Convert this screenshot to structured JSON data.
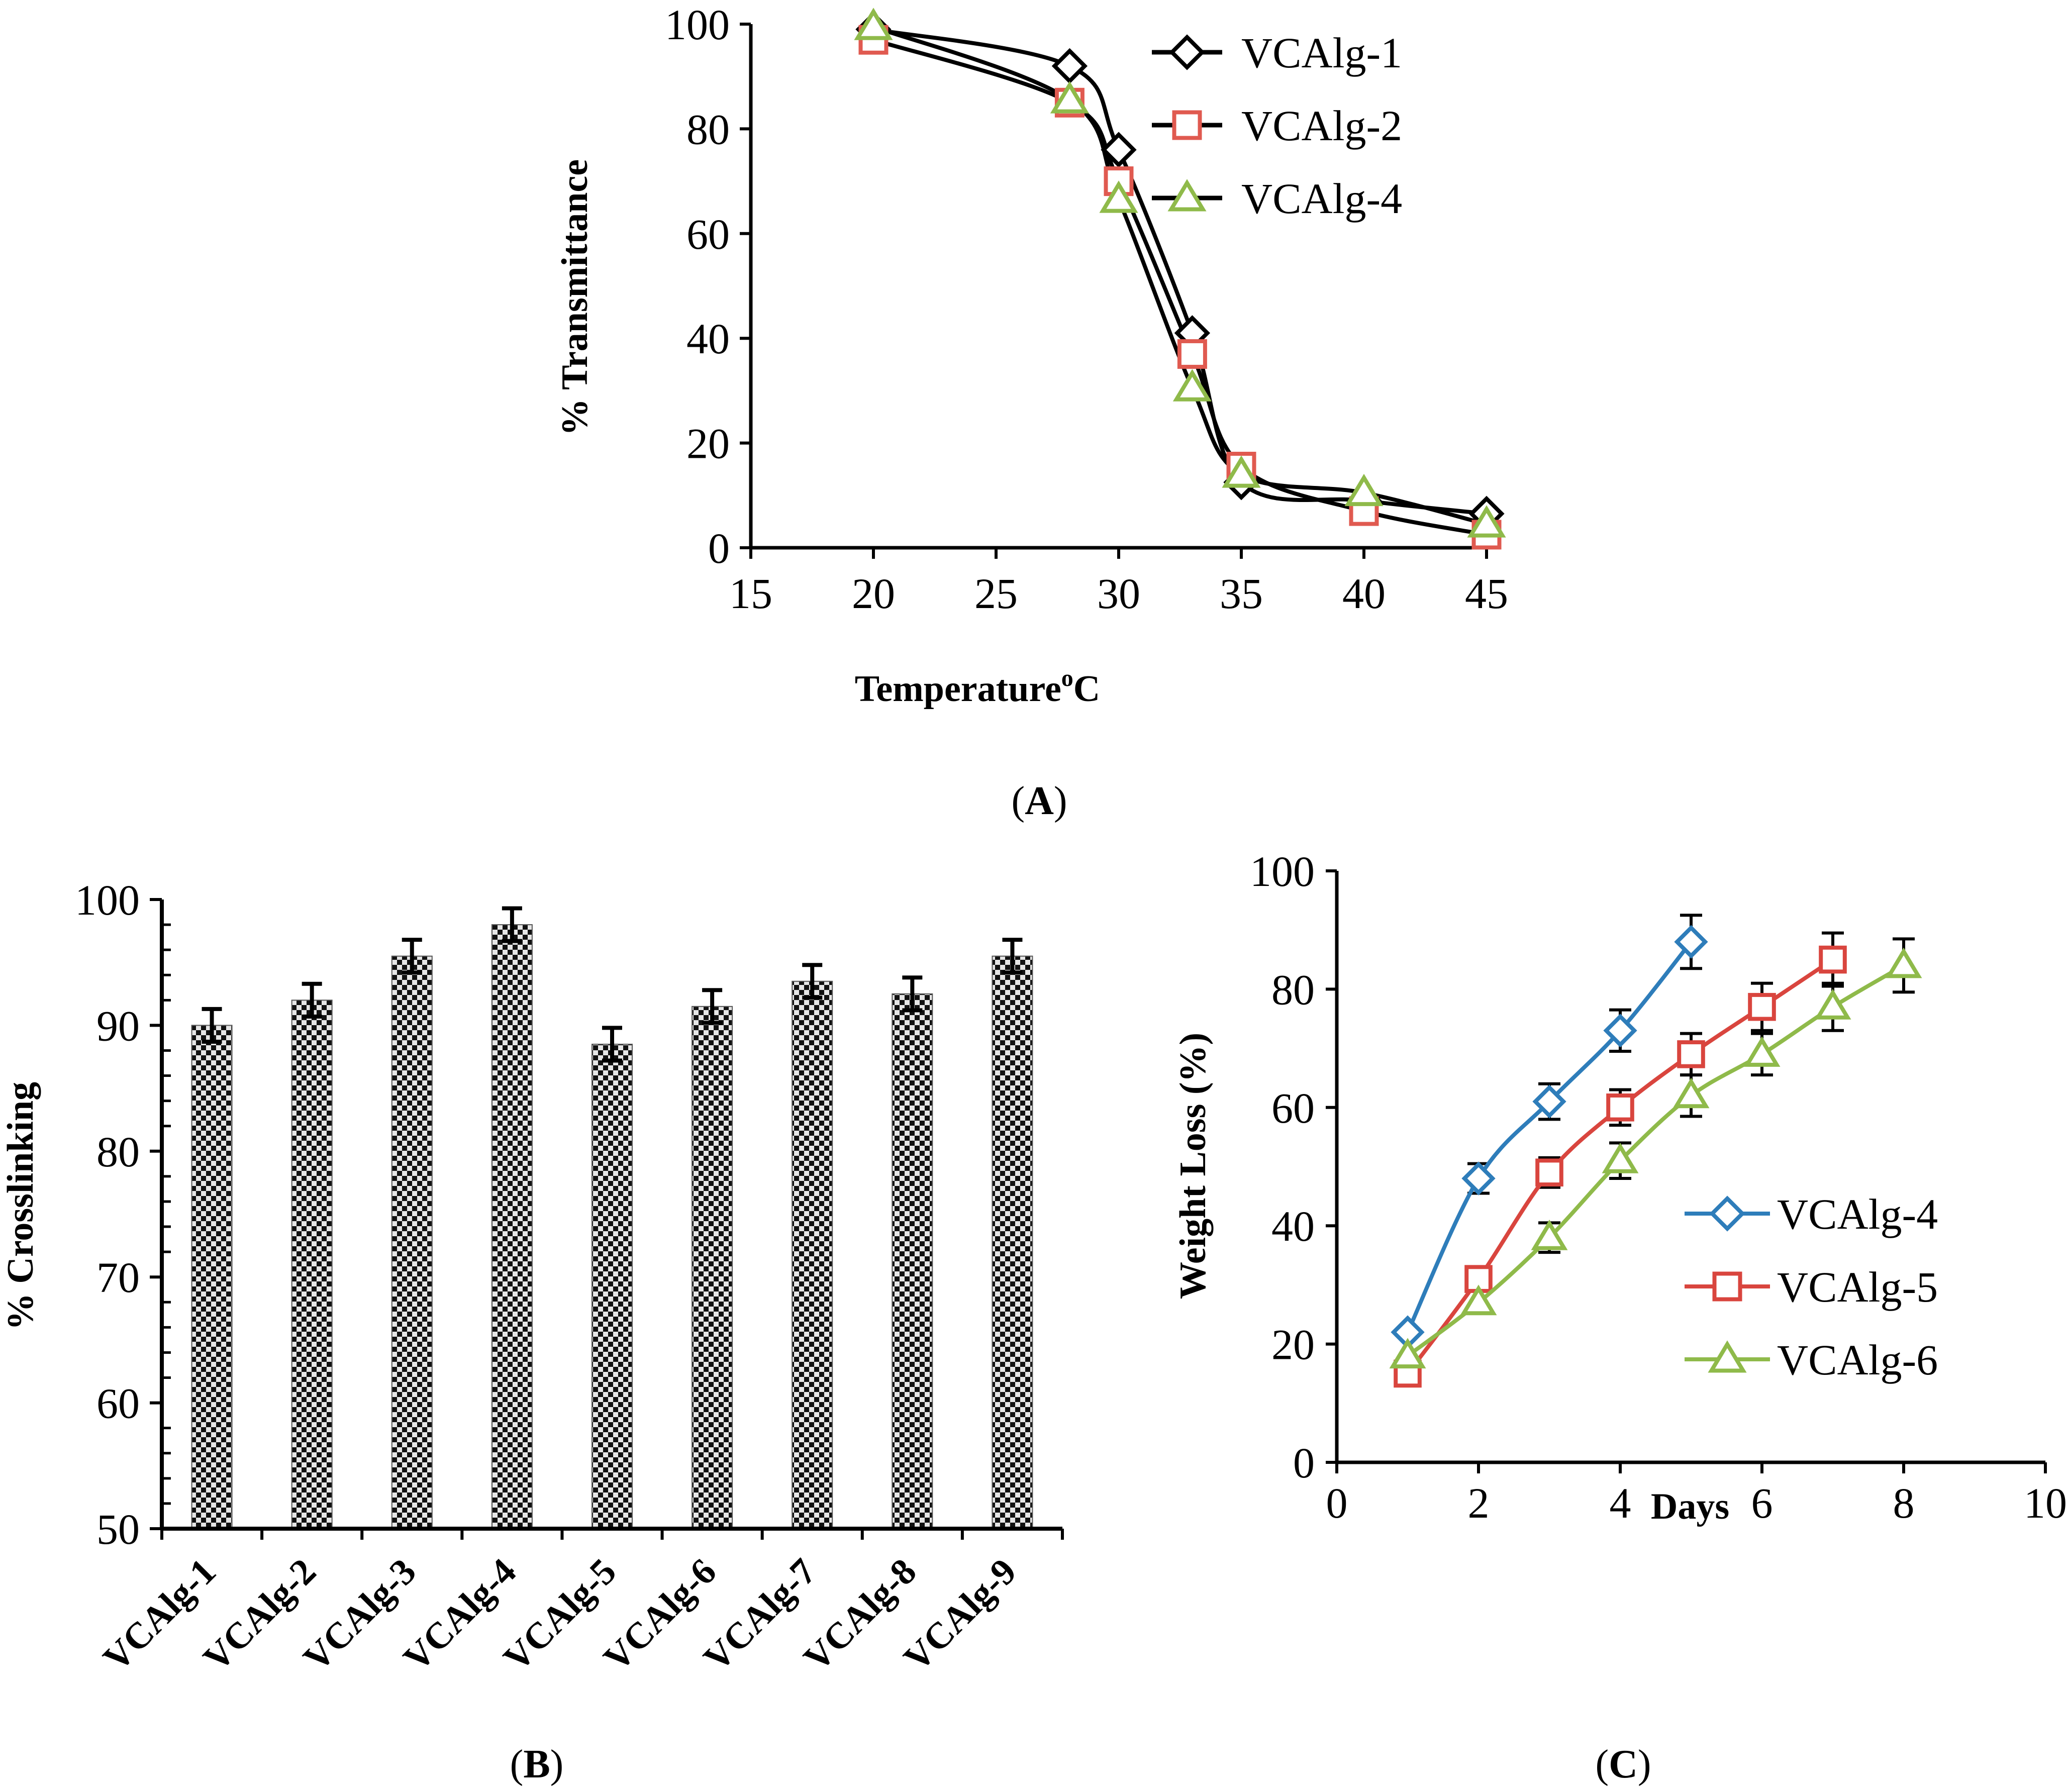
{
  "chart_data": [
    {
      "panel": "A",
      "type": "line",
      "panel_label_open": "(",
      "panel_label_letter": "A",
      "panel_label_close": ")",
      "xlabel": "Temperature",
      "xlabel_superscript": "o",
      "xlabel_unit": "C",
      "ylabel": "% Transmittance",
      "xlim": [
        15,
        45
      ],
      "ylim": [
        0,
        100
      ],
      "xticks": [
        15,
        20,
        25,
        30,
        35,
        40,
        45
      ],
      "yticks": [
        0,
        20,
        40,
        60,
        80,
        100
      ],
      "legend_position": "top-right",
      "series": [
        {
          "name": "VCAlg-1",
          "marker": "diamond",
          "marker_color": "#000000",
          "line_color": "#000000",
          "x": [
            20,
            28,
            30,
            33,
            35,
            40,
            45
          ],
          "y": [
            99,
            92,
            76,
            41,
            12.5,
            9,
            6.5
          ]
        },
        {
          "name": "VCAlg-2",
          "marker": "square",
          "marker_color": "#e05a50",
          "line_color": "#000000",
          "x": [
            20,
            28,
            30,
            33,
            35,
            40,
            45
          ],
          "y": [
            97,
            85,
            70,
            37,
            15.5,
            7,
            2.5
          ]
        },
        {
          "name": "VCAlg-4",
          "marker": "triangle",
          "marker_color": "#8fba4a",
          "line_color": "#000000",
          "x": [
            20,
            28,
            30,
            33,
            35,
            40,
            45
          ],
          "y": [
            99.5,
            85.5,
            66.5,
            30.5,
            14,
            10.5,
            4.5
          ]
        }
      ]
    },
    {
      "panel": "B",
      "type": "bar",
      "panel_label_open": "(",
      "panel_label_letter": "B",
      "panel_label_close": ")",
      "ylabel": "% Crosslinking",
      "ylim": [
        50,
        100
      ],
      "yticks": [
        50,
        60,
        70,
        80,
        90,
        100
      ],
      "categories": [
        "VCAlg-1",
        "VCAlg-2",
        "VCAlg-3",
        "VCAlg-4",
        "VCAlg-5",
        "VCAlg-6",
        "VCAlg-7",
        "VCAlg-8",
        "VCAlg-9"
      ],
      "values": [
        90,
        92,
        95.5,
        98,
        88.5,
        91.5,
        93.5,
        92.5,
        95.5
      ],
      "errors": [
        1.3,
        1.3,
        1.3,
        1.3,
        1.3,
        1.3,
        1.3,
        1.3,
        1.3
      ]
    },
    {
      "panel": "C",
      "type": "line",
      "panel_label_open": "(",
      "panel_label_letter": "C",
      "panel_label_close": ")",
      "xlabel": "Days",
      "ylabel": "Weight Loss (%)",
      "xlim": [
        0,
        10
      ],
      "ylim": [
        0,
        100
      ],
      "xticks": [
        0,
        2,
        4,
        6,
        8,
        10
      ],
      "yticks": [
        0,
        20,
        40,
        60,
        80,
        100
      ],
      "legend_position": "right",
      "series": [
        {
          "name": "VCAlg-4",
          "marker": "diamond",
          "color": "#2e7dba",
          "x": [
            1,
            2,
            3,
            4,
            5
          ],
          "y": [
            22,
            48,
            61,
            73,
            88
          ],
          "errors": [
            0,
            2.5,
            3,
            3.5,
            4.5
          ]
        },
        {
          "name": "VCAlg-5",
          "marker": "square",
          "color": "#d9453e",
          "x": [
            1,
            2,
            3,
            4,
            5,
            6,
            7
          ],
          "y": [
            15,
            31,
            49,
            60,
            69,
            77,
            85
          ],
          "errors": [
            0,
            0,
            2.5,
            3,
            3.5,
            4,
            4.5
          ]
        },
        {
          "name": "VCAlg-6",
          "marker": "triangle",
          "color": "#8fba4a",
          "x": [
            1,
            2,
            3,
            4,
            5,
            6,
            7,
            8
          ],
          "y": [
            18,
            27,
            38,
            51,
            62,
            69,
            77,
            84
          ],
          "errors": [
            0,
            0,
            2.5,
            3,
            3.5,
            3.5,
            4,
            4.5
          ]
        }
      ]
    }
  ]
}
